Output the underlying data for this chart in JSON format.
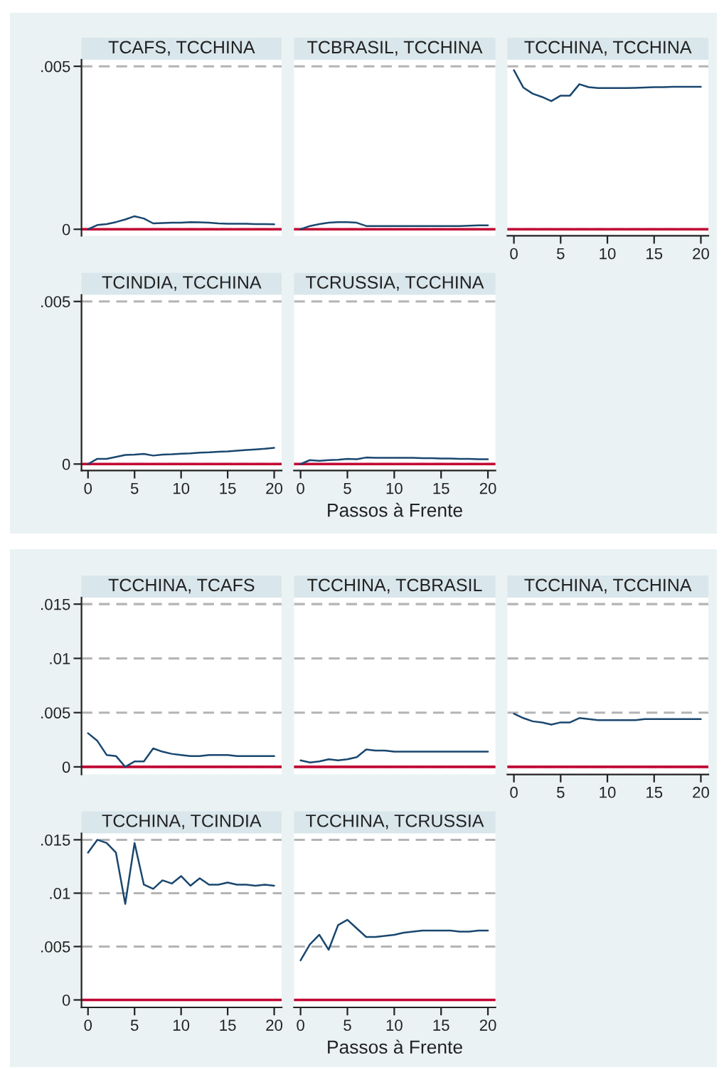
{
  "chart_data": [
    {
      "type": "line",
      "title": "TCAFS, TCCHINA",
      "x": [
        0,
        1,
        2,
        3,
        4,
        5,
        6,
        7,
        8,
        9,
        10,
        11,
        12,
        13,
        14,
        15,
        16,
        17,
        18,
        19,
        20
      ],
      "values": [
        0,
        0.00013,
        0.00016,
        0.00022,
        0.0003,
        0.0004,
        0.00033,
        0.00018,
        0.00019,
        0.0002,
        0.0002,
        0.00022,
        0.00021,
        0.0002,
        0.00018,
        0.00017,
        0.00017,
        0.00017,
        0.00016,
        0.00016,
        0.00015
      ],
      "color": "#1a476f",
      "xlim": [
        -0.7,
        20.8
      ],
      "xticks": [
        0,
        5,
        10,
        15,
        20
      ],
      "ylim": [
        -0.0002,
        0.0052
      ],
      "yticks": [
        0,
        {
          "value": 0.005,
          "label": ".005"
        }
      ],
      "grid": "y",
      "ref_lines": [
        {
          "axis": "y",
          "value": 0,
          "color": "#c10534"
        }
      ],
      "tick_labels": "y"
    },
    {
      "type": "line",
      "title": "TCBRASIL, TCCHINA",
      "x": [
        0,
        1,
        2,
        3,
        4,
        5,
        6,
        7,
        8,
        9,
        10,
        11,
        12,
        13,
        14,
        15,
        16,
        17,
        18,
        19,
        20
      ],
      "values": [
        0,
        0.0001,
        0.00016,
        0.0002,
        0.00022,
        0.00022,
        0.0002,
        0.0001,
        0.0001,
        0.0001,
        0.0001,
        0.0001,
        0.0001,
        0.0001,
        0.0001,
        0.0001,
        0.0001,
        0.0001,
        0.00011,
        0.00012,
        0.00012
      ],
      "color": "#1a476f",
      "xlim": [
        -0.7,
        20.8
      ],
      "xticks": [
        0,
        5,
        10,
        15,
        20
      ],
      "ylim": [
        -0.0002,
        0.0052
      ],
      "yticks": [
        0,
        0.005
      ],
      "grid": "y",
      "ref_lines": [
        {
          "axis": "y",
          "value": 0,
          "color": "#c10534"
        }
      ],
      "tick_labels": false
    },
    {
      "type": "line",
      "title": "TCCHINA, TCCHINA",
      "x": [
        0,
        1,
        2,
        3,
        4,
        5,
        6,
        7,
        8,
        9,
        10,
        11,
        12,
        13,
        14,
        15,
        16,
        17,
        18,
        19,
        20
      ],
      "values": [
        0.00488,
        0.00435,
        0.00416,
        0.00406,
        0.00393,
        0.0041,
        0.0041,
        0.00445,
        0.00436,
        0.00433,
        0.00433,
        0.00433,
        0.00433,
        0.00434,
        0.00435,
        0.00436,
        0.00436,
        0.00437,
        0.00437,
        0.00437,
        0.00437
      ],
      "color": "#1a476f",
      "xlim": [
        -0.7,
        20.8
      ],
      "xticks": [
        0,
        5,
        10,
        15,
        20
      ],
      "ylim": [
        -0.0002,
        0.0052
      ],
      "yticks": [
        0,
        0.005
      ],
      "grid": "y",
      "ref_lines": [
        {
          "axis": "y",
          "value": 0,
          "color": "#c10534"
        }
      ],
      "tick_labels": "x"
    },
    {
      "type": "line",
      "title": "TCINDIA, TCCHINA",
      "x": [
        0,
        1,
        2,
        3,
        4,
        5,
        6,
        7,
        8,
        9,
        10,
        11,
        12,
        13,
        14,
        15,
        16,
        17,
        18,
        19,
        20
      ],
      "values": [
        0,
        0.00016,
        0.00016,
        0.00022,
        0.00028,
        0.00029,
        0.00031,
        0.00026,
        0.00029,
        0.0003,
        0.00032,
        0.00033,
        0.00035,
        0.00036,
        0.00038,
        0.00039,
        0.00041,
        0.00043,
        0.00045,
        0.00047,
        0.0005
      ],
      "color": "#1a476f",
      "xlim": [
        -0.7,
        20.8
      ],
      "xticks": [
        0,
        5,
        10,
        15,
        20
      ],
      "ylim": [
        -0.0002,
        0.0052
      ],
      "yticks": [
        0,
        {
          "value": 0.005,
          "label": ".005"
        }
      ],
      "grid": "y",
      "ref_lines": [
        {
          "axis": "y",
          "value": 0,
          "color": "#c10534"
        }
      ]
    },
    {
      "type": "line",
      "title": "TCRUSSIA, TCCHINA",
      "xlabel": "Passos à Frente",
      "x": [
        0,
        1,
        2,
        3,
        4,
        5,
        6,
        7,
        8,
        9,
        10,
        11,
        12,
        13,
        14,
        15,
        16,
        17,
        18,
        19,
        20
      ],
      "values": [
        0,
        0.00012,
        0.0001,
        0.00012,
        0.00013,
        0.00016,
        0.00015,
        0.0002,
        0.00019,
        0.00019,
        0.00019,
        0.00019,
        0.00019,
        0.00018,
        0.00018,
        0.00017,
        0.00017,
        0.00016,
        0.00016,
        0.00015,
        0.00015
      ],
      "color": "#1a476f",
      "xlim": [
        -0.7,
        20.8
      ],
      "xticks": [
        0,
        5,
        10,
        15,
        20
      ],
      "ylim": [
        -0.0002,
        0.0052
      ],
      "yticks": [
        0,
        0.005
      ],
      "grid": "y",
      "ref_lines": [
        {
          "axis": "y",
          "value": 0,
          "color": "#c10534"
        }
      ],
      "tick_labels": "x"
    },
    {
      "type": "line",
      "title": "TCCHINA, TCAFS",
      "x": [
        0,
        1,
        2,
        3,
        4,
        5,
        6,
        7,
        8,
        9,
        10,
        11,
        12,
        13,
        14,
        15,
        16,
        17,
        18,
        19,
        20
      ],
      "values": [
        0.0031,
        0.0024,
        0.0011,
        0.001,
        0,
        0.0005,
        0.0005,
        0.0017,
        0.0014,
        0.0012,
        0.0011,
        0.001,
        0.001,
        0.0011,
        0.0011,
        0.0011,
        0.001,
        0.001,
        0.001,
        0.001,
        0.001
      ],
      "color": "#1a476f",
      "xlim": [
        -0.7,
        20.8
      ],
      "xticks": [
        0,
        5,
        10,
        15,
        20
      ],
      "ylim": [
        -0.0007,
        0.0156
      ],
      "yticks": [
        0,
        {
          "value": 0.005,
          "label": ".005"
        },
        {
          "value": 0.01,
          "label": ".01"
        },
        {
          "value": 0.015,
          "label": ".015"
        }
      ],
      "grid": "y",
      "ref_lines": [
        {
          "axis": "y",
          "value": 0,
          "color": "#c10534"
        }
      ],
      "tick_labels": "y"
    },
    {
      "type": "line",
      "title": "TCCHINA, TCBRASIL",
      "x": [
        0,
        1,
        2,
        3,
        4,
        5,
        6,
        7,
        8,
        9,
        10,
        11,
        12,
        13,
        14,
        15,
        16,
        17,
        18,
        19,
        20
      ],
      "values": [
        0.0006,
        0.0004,
        0.0005,
        0.0007,
        0.0006,
        0.0007,
        0.0009,
        0.0016,
        0.0015,
        0.0015,
        0.0014,
        0.0014,
        0.0014,
        0.0014,
        0.0014,
        0.0014,
        0.0014,
        0.0014,
        0.0014,
        0.0014,
        0.0014
      ],
      "color": "#1a476f",
      "xlim": [
        -0.7,
        20.8
      ],
      "xticks": [
        0,
        5,
        10,
        15,
        20
      ],
      "ylim": [
        -0.0007,
        0.0156
      ],
      "yticks": [
        0,
        0.005,
        0.01,
        0.015
      ],
      "grid": "y",
      "ref_lines": [
        {
          "axis": "y",
          "value": 0,
          "color": "#c10534"
        }
      ],
      "tick_labels": false
    },
    {
      "type": "line",
      "title": "TCCHINA, TCCHINA",
      "x": [
        0,
        1,
        2,
        3,
        4,
        5,
        6,
        7,
        8,
        9,
        10,
        11,
        12,
        13,
        14,
        15,
        16,
        17,
        18,
        19,
        20
      ],
      "values": [
        0.0049,
        0.0045,
        0.0042,
        0.0041,
        0.0039,
        0.0041,
        0.0041,
        0.0045,
        0.0044,
        0.0043,
        0.0043,
        0.0043,
        0.0043,
        0.0043,
        0.0044,
        0.0044,
        0.0044,
        0.0044,
        0.0044,
        0.0044,
        0.0044
      ],
      "color": "#1a476f",
      "xlim": [
        -0.7,
        20.8
      ],
      "xticks": [
        0,
        5,
        10,
        15,
        20
      ],
      "ylim": [
        -0.0007,
        0.0156
      ],
      "yticks": [
        0,
        0.005,
        0.01,
        0.015
      ],
      "grid": "y",
      "ref_lines": [
        {
          "axis": "y",
          "value": 0,
          "color": "#c10534"
        }
      ],
      "tick_labels": "x"
    },
    {
      "type": "line",
      "title": "TCCHINA, TCINDIA",
      "x": [
        0,
        1,
        2,
        3,
        4,
        5,
        6,
        7,
        8,
        9,
        10,
        11,
        12,
        13,
        14,
        15,
        16,
        17,
        18,
        19,
        20
      ],
      "values": [
        0.0138,
        0.015,
        0.0147,
        0.0138,
        0.009,
        0.0147,
        0.0108,
        0.0104,
        0.0112,
        0.0109,
        0.0116,
        0.0107,
        0.0114,
        0.0108,
        0.0108,
        0.011,
        0.0108,
        0.0108,
        0.0107,
        0.0108,
        0.0107
      ],
      "color": "#1a476f",
      "xlim": [
        -0.7,
        20.8
      ],
      "xticks": [
        0,
        5,
        10,
        15,
        20
      ],
      "ylim": [
        -0.0007,
        0.0156
      ],
      "yticks": [
        0,
        {
          "value": 0.005,
          "label": ".005"
        },
        {
          "value": 0.01,
          "label": ".01"
        },
        {
          "value": 0.015,
          "label": ".015"
        }
      ],
      "grid": "y",
      "ref_lines": [
        {
          "axis": "y",
          "value": 0,
          "color": "#c10534"
        }
      ]
    },
    {
      "type": "line",
      "title": "TCCHINA, TCRUSSIA",
      "xlabel": "Passos à Frente",
      "x": [
        0,
        1,
        2,
        3,
        4,
        5,
        6,
        7,
        8,
        9,
        10,
        11,
        12,
        13,
        14,
        15,
        16,
        17,
        18,
        19,
        20
      ],
      "values": [
        0.0037,
        0.0052,
        0.0061,
        0.0047,
        0.007,
        0.0075,
        0.0067,
        0.0059,
        0.0059,
        0.006,
        0.0061,
        0.0063,
        0.0064,
        0.0065,
        0.0065,
        0.0065,
        0.0065,
        0.0064,
        0.0064,
        0.0065,
        0.0065
      ],
      "color": "#1a476f",
      "xlim": [
        -0.7,
        20.8
      ],
      "xticks": [
        0,
        5,
        10,
        15,
        20
      ],
      "ylim": [
        -0.0007,
        0.0156
      ],
      "yticks": [
        0,
        0.005,
        0.01,
        0.015
      ],
      "grid": "y",
      "ref_lines": [
        {
          "axis": "y",
          "value": 0,
          "color": "#c10534"
        }
      ],
      "tick_labels": "x"
    }
  ]
}
